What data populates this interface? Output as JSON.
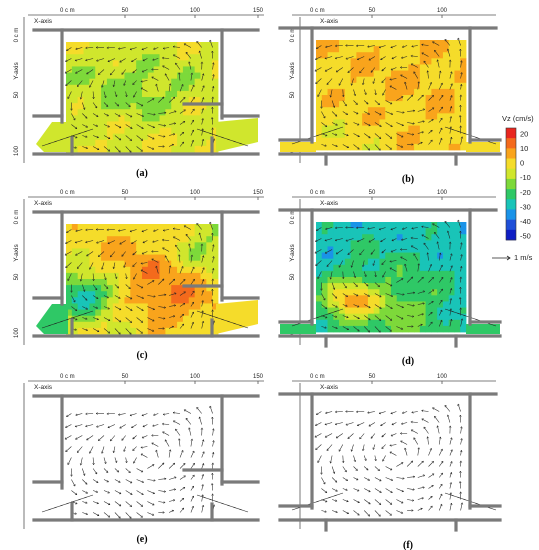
{
  "panels": [
    {
      "id": "a",
      "label": "(a)",
      "mode": "contour",
      "layout": "a",
      "x_label": "X-axis",
      "y_label": "Y-axis",
      "x_zero": "0 c m",
      "x_ticks": [
        "50",
        "100",
        "150"
      ],
      "y_zero": "0 c m",
      "y_ticks": [
        "50",
        "100"
      ]
    },
    {
      "id": "b",
      "label": "(b)",
      "mode": "contour",
      "layout": "b",
      "x_label": "X-axis",
      "y_label": "Y-axis",
      "x_zero": "0 c m",
      "x_ticks": [
        "50",
        "100"
      ],
      "y_zero": "0 c m",
      "y_ticks": [
        "50",
        "100"
      ]
    },
    {
      "id": "c",
      "label": "(c)",
      "mode": "contour",
      "layout": "a",
      "x_label": "X-axis",
      "y_label": "Y-axis",
      "x_zero": "0 c m",
      "x_ticks": [
        "50",
        "100",
        "150"
      ],
      "y_zero": "0 c m",
      "y_ticks": [
        "50",
        "100"
      ]
    },
    {
      "id": "d",
      "label": "(d)",
      "mode": "contour",
      "layout": "b",
      "x_label": "X-axis",
      "y_label": "Y-axis",
      "x_zero": "0 c m",
      "x_ticks": [
        "50",
        "100"
      ],
      "y_zero": "0 c m",
      "y_ticks": [
        "50",
        "100"
      ]
    },
    {
      "id": "e",
      "label": "(e)",
      "mode": "vectors",
      "layout": "a",
      "x_label": "X-axis",
      "y_label": "",
      "x_zero": "0 c m",
      "x_ticks": [
        "50",
        "100",
        "150"
      ],
      "y_zero": "",
      "y_ticks": []
    },
    {
      "id": "f",
      "label": "(f)",
      "mode": "vectors",
      "layout": "b",
      "x_label": "X-axis",
      "y_label": "",
      "x_zero": "0 c m",
      "x_ticks": [
        "50",
        "100"
      ],
      "y_zero": "",
      "y_ticks": []
    }
  ],
  "legend": {
    "title": "Vz (cm/s)",
    "levels": [
      "20",
      "10",
      "0",
      "-10",
      "-20",
      "-30",
      "-40",
      "-50"
    ],
    "colors": [
      "#e8261f",
      "#f46a1c",
      "#f9a41c",
      "#f5dc2a",
      "#d0e62d",
      "#7dd93a",
      "#2fc866",
      "#19c4b8",
      "#1a93e8",
      "#1f4fd8",
      "#0f1ec4"
    ],
    "reference_vector": "1 m/s"
  },
  "fields": {
    "a": {
      "base": 0.3,
      "blobs": [
        [
          0.2,
          0.25,
          0.25,
          -0.25
        ],
        [
          0.45,
          0.45,
          0.2,
          -0.2
        ],
        [
          0.75,
          0.35,
          0.25,
          -0.1
        ],
        [
          0.3,
          0.2,
          0.22,
          0.18
        ]
      ]
    },
    "b": {
      "base": 0.45,
      "blobs": [
        [
          0.55,
          0.45,
          0.35,
          0.05
        ],
        [
          0.2,
          0.9,
          0.25,
          -0.1
        ]
      ]
    },
    "c": {
      "base": 0.35,
      "blobs": [
        [
          0.12,
          0.65,
          0.14,
          -0.8
        ],
        [
          0.55,
          0.35,
          0.25,
          0.25
        ],
        [
          0.9,
          0.25,
          0.2,
          -0.35
        ],
        [
          0.75,
          0.65,
          0.2,
          0.3
        ]
      ]
    },
    "d": {
      "base": -0.45,
      "blobs": [
        [
          0.22,
          0.72,
          0.13,
          0.9
        ],
        [
          0.6,
          0.85,
          0.25,
          0.35
        ],
        [
          0.45,
          0.45,
          0.3,
          0.15
        ]
      ]
    },
    "e": {
      "base": 0.3,
      "blobs": [
        [
          0.5,
          0.5,
          0.3,
          0.2
        ]
      ]
    },
    "f": {
      "base": 0.4,
      "blobs": [
        [
          0.5,
          0.5,
          0.3,
          0.2
        ]
      ]
    }
  }
}
